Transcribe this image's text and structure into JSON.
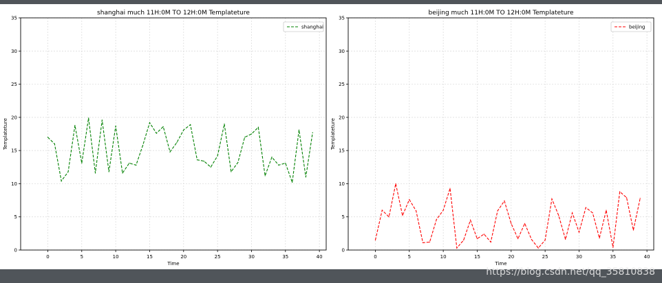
{
  "watermark": "https://blog.csdn.net/qq_35810838",
  "chart_data": [
    {
      "type": "line",
      "title": "shanghai much 11H:0M TO 12H:0M Templateture",
      "xlabel": "Time",
      "ylabel": "Templateture",
      "xlim": [
        -4,
        41
      ],
      "ylim": [
        0,
        35
      ],
      "xticks": [
        0,
        5,
        10,
        15,
        20,
        25,
        30,
        35,
        40
      ],
      "yticks": [
        0,
        5,
        10,
        15,
        20,
        25,
        30,
        35
      ],
      "grid": true,
      "legend": "top-right",
      "series": [
        {
          "name": "shanghai",
          "color": "#008000",
          "linestyle": "dashed",
          "x": [
            0,
            1,
            2,
            3,
            4,
            5,
            6,
            7,
            8,
            9,
            10,
            11,
            12,
            13,
            14,
            15,
            16,
            17,
            18,
            19,
            20,
            21,
            22,
            23,
            24,
            25,
            26,
            27,
            28,
            29,
            30,
            31,
            32,
            33,
            34,
            35,
            36,
            37,
            38,
            39
          ],
          "values": [
            17,
            16,
            10.4,
            11.8,
            18.8,
            13.1,
            19.9,
            11.6,
            19.6,
            11.8,
            18.7,
            11.6,
            13.1,
            12.8,
            15.8,
            19.2,
            17.6,
            18.6,
            14.8,
            16.2,
            18.1,
            18.9,
            13.6,
            13.4,
            12.5,
            14.2,
            19,
            11.8,
            13.2,
            17,
            17.5,
            18.5,
            11.2,
            14,
            12.8,
            13.1,
            10.2,
            18.1,
            11,
            17.7
          ]
        }
      ]
    },
    {
      "type": "line",
      "title": "beijing much 11H:0M TO 12H:0M Templateture",
      "xlabel": "Time",
      "ylabel": "Templateture",
      "xlim": [
        -4,
        41
      ],
      "ylim": [
        0,
        35
      ],
      "xticks": [
        0,
        5,
        10,
        15,
        20,
        25,
        30,
        35,
        40
      ],
      "yticks": [
        0,
        5,
        10,
        15,
        20,
        25,
        30,
        35
      ],
      "grid": true,
      "legend": "top-right",
      "series": [
        {
          "name": "beijing",
          "color": "#ff0000",
          "linestyle": "dashed",
          "x": [
            0,
            1,
            2,
            3,
            4,
            5,
            6,
            7,
            8,
            9,
            10,
            11,
            12,
            13,
            14,
            15,
            16,
            17,
            18,
            19,
            20,
            21,
            22,
            23,
            24,
            25,
            26,
            27,
            28,
            29,
            30,
            31,
            32,
            33,
            34,
            35,
            36,
            37,
            38,
            39
          ],
          "values": [
            1.5,
            6,
            5,
            10,
            5.2,
            7.6,
            5.9,
            1.1,
            1.2,
            4.6,
            6,
            9.3,
            0.3,
            1.5,
            4.5,
            1.7,
            2.4,
            1.2,
            5.9,
            7.4,
            4,
            1.7,
            4,
            1.6,
            0.3,
            1.5,
            7.7,
            5.2,
            1.6,
            5.6,
            2.7,
            6.4,
            5.6,
            1.8,
            6,
            0.4,
            8.8,
            7.9,
            3,
            7.8
          ]
        }
      ]
    }
  ]
}
